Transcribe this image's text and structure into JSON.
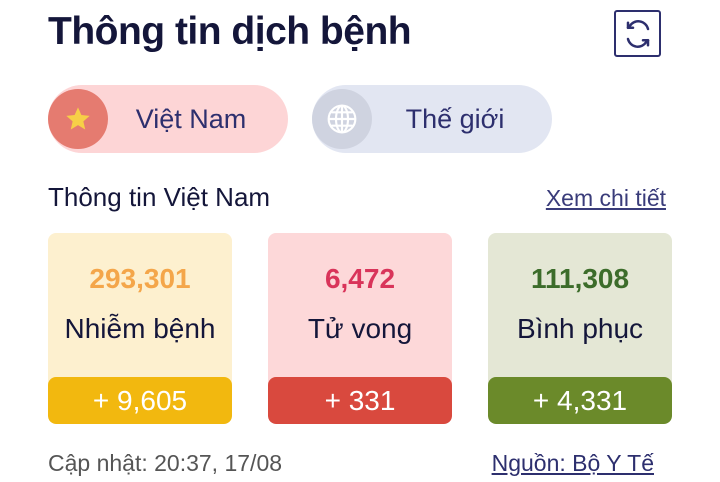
{
  "header": {
    "title": "Thông tin dịch bệnh",
    "refresh_icon": "refresh-icon"
  },
  "tabs": [
    {
      "label": "Việt Nam",
      "icon": "star-icon",
      "active": true
    },
    {
      "label": "Thế giới",
      "icon": "globe-icon",
      "active": false
    }
  ],
  "section": {
    "title": "Thông tin Việt Nam",
    "detail_link": "Xem chi tiết"
  },
  "stats": [
    {
      "value": "293,301",
      "label": "Nhiễm bệnh",
      "delta": "+ 9,605",
      "color": "#f2b80f"
    },
    {
      "value": "6,472",
      "label": "Tử vong",
      "delta": "+ 331",
      "color": "#d9493e"
    },
    {
      "value": "111,308",
      "label": "Bình phục",
      "delta": "+ 4,331",
      "color": "#6b8a2a"
    }
  ],
  "footer": {
    "updated": "Cập nhật: 20:37, 17/08",
    "source": "Nguồn: Bộ Y Tế"
  }
}
